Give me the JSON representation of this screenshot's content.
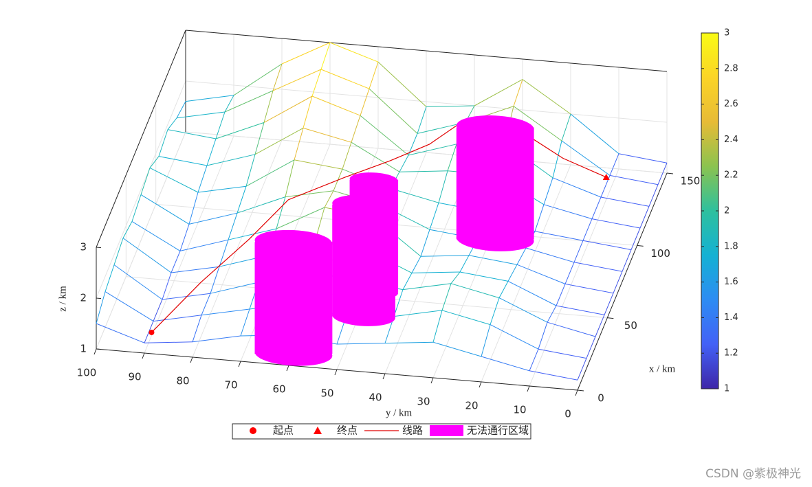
{
  "chart_data": {
    "type": "surface",
    "xlabel": "x / km",
    "ylabel": "y / km",
    "zlabel": "z / km",
    "xlim": [
      0,
      150
    ],
    "ylim": [
      0,
      100
    ],
    "zlim": [
      1,
      3
    ],
    "xticks": [
      0,
      50,
      100,
      150
    ],
    "yticks": [
      0,
      10,
      20,
      30,
      40,
      50,
      60,
      70,
      80,
      90,
      100
    ],
    "zticks": [
      1,
      2,
      3
    ],
    "grid": true,
    "clim": [
      1,
      3
    ],
    "cticks": [
      1,
      1.2,
      1.4,
      1.6,
      1.8,
      2,
      2.2,
      2.4,
      2.6,
      2.8,
      3
    ],
    "colormap": [
      "#3e26a8",
      "#4361f6",
      "#2d8cf3",
      "#14b1d3",
      "#2ec09e",
      "#8bc34f",
      "#e7bb36",
      "#fbd426",
      "#f9fb15"
    ],
    "surface": {
      "x": [
        0,
        15,
        30,
        45,
        60,
        75,
        90,
        105,
        120,
        135,
        150
      ],
      "y": [
        0,
        10,
        20,
        30,
        40,
        50,
        60,
        70,
        80,
        90,
        100
      ],
      "z": [
        [
          1.2,
          1.3,
          1.5,
          1.7,
          1.6,
          1.5,
          1.6,
          1.5,
          1.3,
          1.2,
          1.5
        ],
        [
          1.2,
          1.3,
          1.7,
          1.9,
          1.7,
          1.6,
          1.8,
          1.6,
          1.4,
          1.2,
          1.7
        ],
        [
          1.2,
          1.4,
          1.8,
          2.0,
          1.8,
          1.9,
          2.0,
          1.7,
          1.4,
          1.2,
          1.8
        ],
        [
          1.2,
          1.3,
          1.7,
          1.8,
          1.7,
          2.1,
          2.2,
          1.8,
          1.5,
          1.3,
          1.9
        ],
        [
          1.2,
          1.3,
          1.6,
          1.7,
          1.6,
          2.3,
          2.4,
          1.9,
          1.6,
          1.3,
          1.8
        ],
        [
          1.2,
          1.3,
          1.5,
          1.6,
          1.7,
          2.1,
          2.3,
          2.1,
          1.7,
          1.4,
          1.9
        ],
        [
          1.2,
          1.3,
          1.4,
          1.7,
          1.8,
          2.0,
          2.3,
          2.4,
          1.8,
          1.6,
          2.0
        ],
        [
          1.2,
          1.3,
          1.5,
          2.0,
          2.0,
          1.9,
          2.4,
          2.6,
          2.0,
          1.7,
          1.8
        ],
        [
          1.2,
          1.3,
          1.6,
          2.2,
          2.1,
          1.8,
          2.5,
          2.8,
          2.2,
          1.8,
          1.9
        ],
        [
          1.2,
          1.3,
          1.9,
          2.5,
          2.1,
          1.8,
          2.6,
          2.9,
          2.4,
          1.9,
          1.7
        ],
        [
          1.2,
          1.3,
          2.0,
          2.6,
          2.0,
          1.9,
          2.7,
          3.0,
          2.5,
          1.8,
          1.6
        ]
      ]
    },
    "start": {
      "name": "起点",
      "color": "#ff0000",
      "x": 4,
      "y": 89,
      "z": 1.3
    },
    "end": {
      "name": "终点",
      "color": "#ff0000",
      "x": 137,
      "y": 11,
      "z": 1.2
    },
    "route": {
      "name": "线路",
      "color": "#e00000",
      "x": [
        4,
        30,
        55,
        80,
        95,
        105,
        115,
        128,
        135,
        137,
        137
      ],
      "y": [
        89,
        82,
        75,
        70,
        60,
        52,
        45,
        40,
        30,
        20,
        11
      ],
      "z": [
        1.3,
        1.6,
        1.8,
        1.9,
        2.0,
        2.1,
        2.2,
        2.3,
        2.1,
        1.5,
        1.2
      ]
    },
    "obstacles": {
      "name": "无法通行区域",
      "color": "#ff00ff",
      "items": [
        {
          "x": 96,
          "y": 29,
          "r": 8,
          "zlim": [
            1,
            3.2
          ]
        },
        {
          "x": 54,
          "y": 49,
          "r": 5,
          "zlim": [
            1,
            3.2
          ]
        },
        {
          "x": 37,
          "y": 49,
          "r": 6.5,
          "zlim": [
            1,
            3.2
          ]
        },
        {
          "x": 8,
          "y": 60,
          "r": 8,
          "zlim": [
            1,
            3.2
          ]
        }
      ]
    }
  },
  "watermark": "CSDN @紫极神光"
}
